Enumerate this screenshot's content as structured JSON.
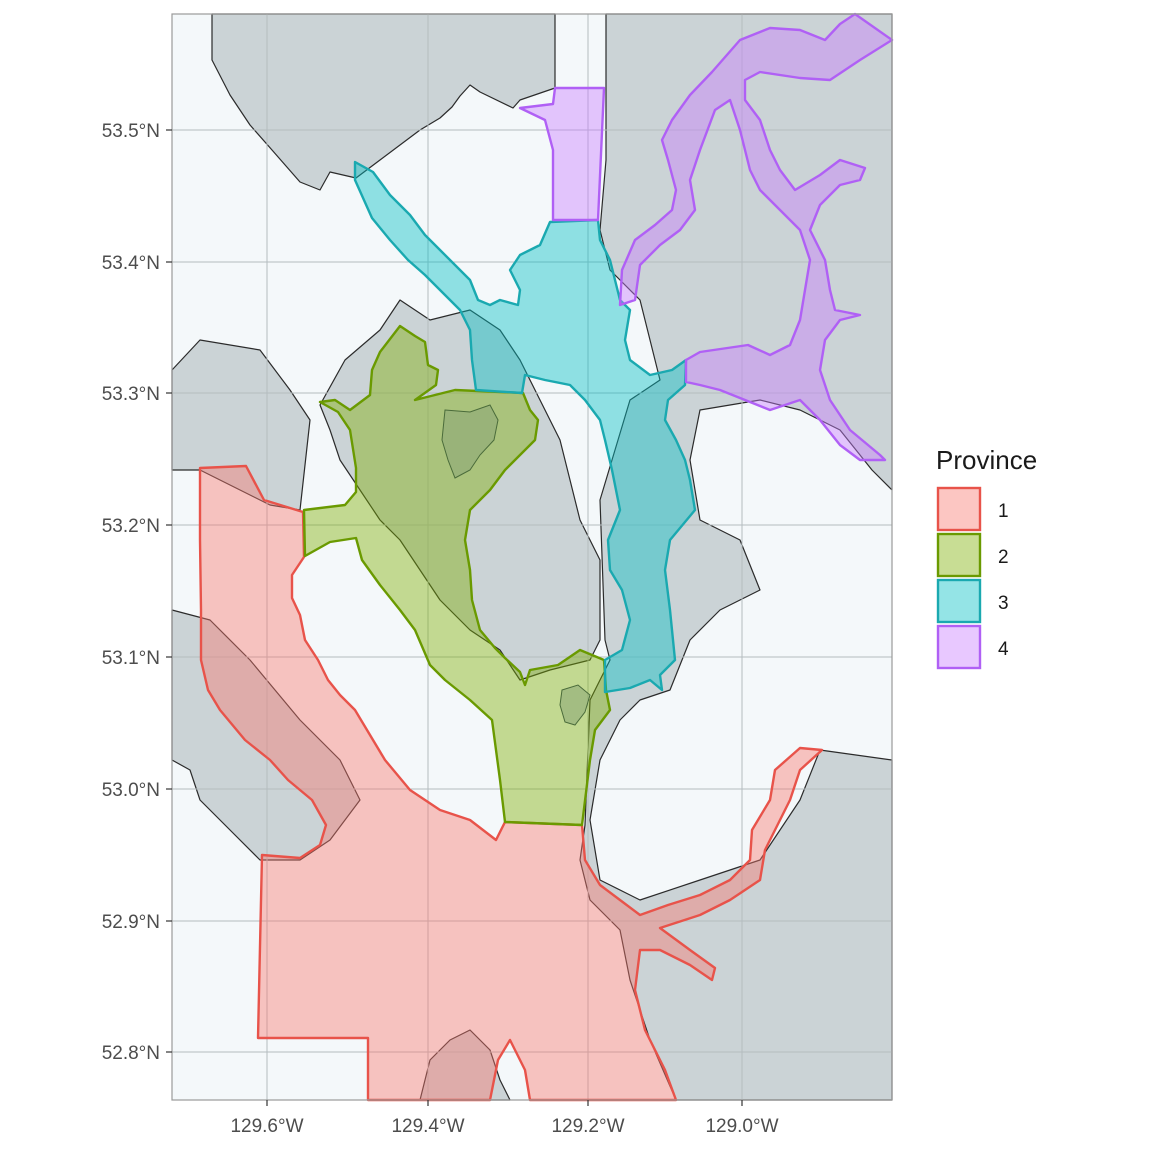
{
  "chart_data": {
    "type": "map",
    "title": "",
    "xlabel": "",
    "ylabel": "",
    "x_ticks": [
      "129.6°W",
      "129.4°W",
      "129.2°W",
      "129.0°W"
    ],
    "y_ticks": [
      "53.5°N",
      "53.4°N",
      "53.3°N",
      "53.2°N",
      "53.1°N",
      "53.0°N",
      "52.9°N",
      "52.8°N"
    ],
    "xlim": [
      -129.72,
      -128.82
    ],
    "ylim": [
      52.765,
      53.585
    ],
    "grid": true,
    "legend": {
      "title": "Province",
      "position": "right",
      "items": [
        {
          "label": "1",
          "fill": "#F8766D",
          "stroke": "#E8534A"
        },
        {
          "label": "2",
          "fill": "#7CAE00",
          "stroke": "#6A9A00"
        },
        {
          "label": "3",
          "fill": "#00BFC4",
          "stroke": "#1AA9B0"
        },
        {
          "label": "4",
          "fill": "#C77CFF",
          "stroke": "#B060F5"
        }
      ]
    },
    "colors": {
      "land": "#CBD3D6",
      "water": "#F4F8FA",
      "grid": "#B4BCBF",
      "panel_border": "#9A9A9A"
    }
  }
}
